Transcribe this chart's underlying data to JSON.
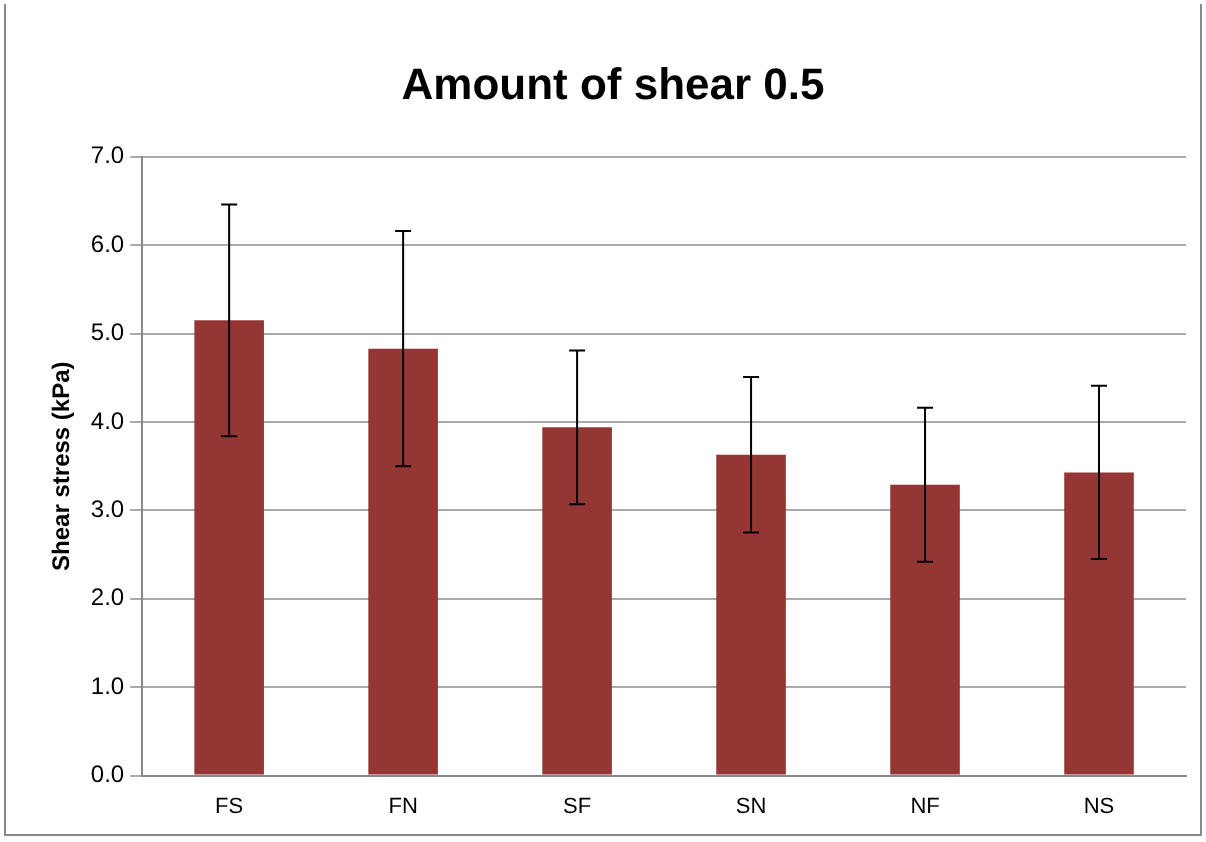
{
  "chart_data": {
    "type": "bar",
    "title": "Amount of shear 0.5",
    "ylabel": "Shear stress (kPa)",
    "categories": [
      "FS",
      "FN",
      "SF",
      "SN",
      "NF",
      "NS"
    ],
    "values": [
      5.15,
      4.83,
      3.94,
      3.63,
      3.29,
      3.43
    ],
    "errors": [
      1.31,
      1.33,
      0.87,
      0.88,
      0.87,
      0.98
    ],
    "color": "#943634",
    "ylim": [
      0,
      7
    ],
    "yticks": [
      {
        "value": 0,
        "label": "0.0"
      },
      {
        "value": 1,
        "label": "1.0"
      },
      {
        "value": 2,
        "label": "2.0"
      },
      {
        "value": 3,
        "label": "3.0"
      },
      {
        "value": 4,
        "label": "4.0"
      },
      {
        "value": 5,
        "label": "5.0"
      },
      {
        "value": 6,
        "label": "6.0"
      },
      {
        "value": 7,
        "label": "7.0"
      }
    ],
    "grid": "y",
    "legend": false
  }
}
